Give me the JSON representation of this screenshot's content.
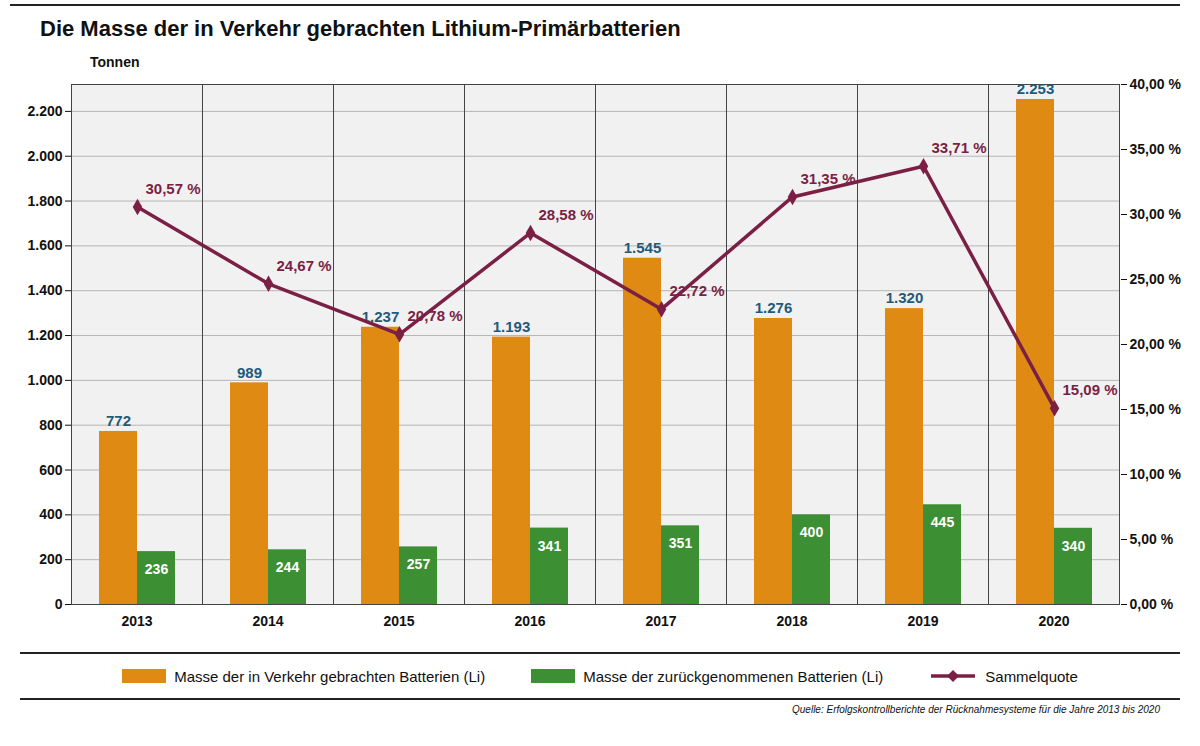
{
  "chart_data": {
    "type": "bar",
    "title": "Die Masse der in Verkehr gebrachten Lithium-Primärbatterien",
    "y_label": "Tonnen",
    "caption": "Quelle: Erfolgskontrollberichte der Rücknahmesysteme für die Jahre 2013 bis 2020",
    "categories": [
      "2013",
      "2014",
      "2015",
      "2016",
      "2017",
      "2018",
      "2019",
      "2020"
    ],
    "series": [
      {
        "name": "Masse der in Verkehr gebrachten Batterien (Li)",
        "type": "bar",
        "color": "#df8a12",
        "values": [
          772,
          989,
          1237,
          1193,
          1545,
          1276,
          1320,
          2253
        ],
        "value_labels": [
          "772",
          "989",
          "1.237",
          "1.193",
          "1.545",
          "1.276",
          "1.320",
          "2.253"
        ]
      },
      {
        "name": "Masse der zurückgenommenen Batterien (Li)",
        "type": "bar",
        "color": "#3c8f32",
        "values": [
          236,
          244,
          257,
          341,
          351,
          400,
          445,
          340
        ]
      },
      {
        "name": "Sammelquote",
        "type": "line",
        "axis": "y2",
        "color": "#7b1f45",
        "marker": "diamond",
        "values": [
          30.57,
          24.67,
          20.78,
          28.58,
          22.72,
          31.35,
          33.71,
          15.09
        ],
        "value_labels": [
          "30,57 %",
          "24,67 %",
          "20,78 %",
          "28,58 %",
          "22,72 %",
          "31,35 %",
          "33,71 %",
          "15,09 %"
        ]
      }
    ],
    "ylim": [
      0,
      2320
    ],
    "yticks": [
      0,
      200,
      400,
      600,
      800,
      {
        "value": 1000,
        "label": "1.000"
      },
      {
        "value": 1200,
        "label": "1.200"
      },
      {
        "value": 1400,
        "label": "1.400"
      },
      {
        "value": 1600,
        "label": "1.600"
      },
      {
        "value": 1800,
        "label": "1.800"
      },
      {
        "value": 2000,
        "label": "2.000"
      },
      {
        "value": 2200,
        "label": "2.200"
      }
    ],
    "y2lim": [
      0,
      40
    ],
    "y2ticks": [
      {
        "value": 0,
        "label": "0,00 %"
      },
      {
        "value": 5,
        "label": "5,00 %"
      },
      {
        "value": 10,
        "label": "10,00 %"
      },
      {
        "value": 15,
        "label": "15,00 %"
      },
      {
        "value": 20,
        "label": "20,00 %"
      },
      {
        "value": 25,
        "label": "25,00 %"
      },
      {
        "value": 30,
        "label": "30,00 %"
      },
      {
        "value": 35,
        "label": "35,00 %"
      },
      {
        "value": 40,
        "label": "40,00 %"
      }
    ],
    "grid": true,
    "data_labels": true,
    "legend": "bottom"
  }
}
